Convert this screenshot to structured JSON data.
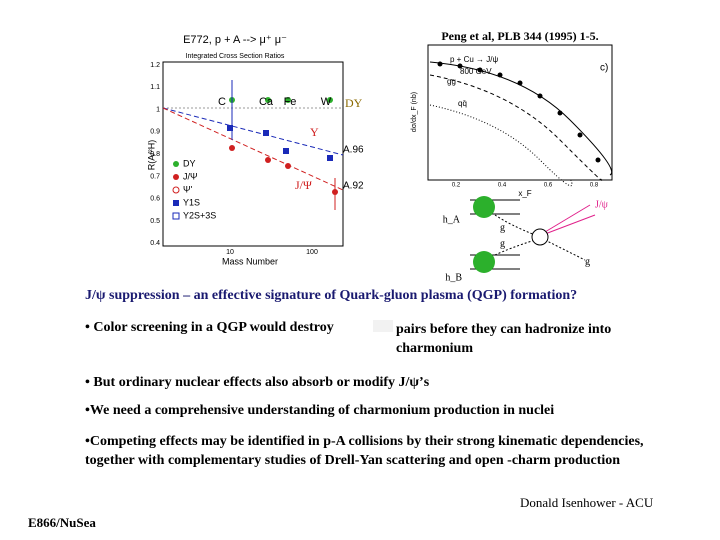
{
  "citation": "Peng et al, PLB 344 (1995) 1-5.",
  "left_plot": {
    "title": "E772, p + A --> μ⁺ μ⁻",
    "subtitle": "Integrated Cross Section Ratios",
    "y_label": "R(A/²H)",
    "x_label": "Mass Number",
    "y_ticks": [
      "1.2",
      "1.1",
      "1",
      "0.9",
      "0.8",
      "0.7",
      "0.6",
      "0.5",
      "0.4"
    ],
    "x_ticks": [
      "10",
      "100"
    ],
    "nuclei": [
      "C",
      "Ca",
      "Fe",
      "W"
    ],
    "fits": [
      "A.96",
      "A.92"
    ],
    "legend": [
      "DY",
      "J/Ψ",
      "Ψ'",
      "Υ1S",
      "Υ2S+3S"
    ],
    "annotations": [
      "DY",
      "Υ",
      "J/Ψ"
    ]
  },
  "right_plot": {
    "label": "p + Cu → J/ψ",
    "energy": "800 GeV",
    "panel": "c)",
    "curves": [
      "gg",
      "qq̄"
    ],
    "y_label": "dσ/dx_F (nb)",
    "x_label": "x_F",
    "x_ticks": [
      "0.2",
      "0.4",
      "0.6",
      "0.8"
    ]
  },
  "diagram": {
    "hadrons": [
      "h_A",
      "h_B"
    ],
    "gluons": [
      "g",
      "g",
      "g"
    ],
    "product": "J/ψ"
  },
  "heading": "J/ψ  suppression – an effective signature of Quark-gluon plasma (QGP) formation?",
  "bullets": [
    [
      "• Color screening in a QGP would destroy",
      "pairs before they can hadronize into charmonium"
    ],
    [
      "• But ordinary nuclear effects also absorb or modify J/ψ’s"
    ],
    [
      "•We need a comprehensive understanding of charmonium production in nuclei"
    ],
    [
      "•Competing effects may be identified in p-A collisions by their strong kinematic dependencies, together with complementary studies of Drell-Yan scattering and open -charm production"
    ]
  ],
  "author": "Donald Isenhower - ACU",
  "footer": "E866/NuSea"
}
